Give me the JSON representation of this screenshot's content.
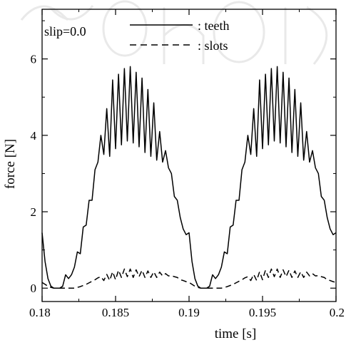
{
  "chart_data": {
    "type": "line",
    "title": "",
    "xlabel": "time [s]",
    "ylabel": "force [N]",
    "xlim": [
      0.18,
      0.2
    ],
    "ylim": [
      -0.35,
      7.3
    ],
    "x_ticks": [
      0.18,
      0.185,
      0.19,
      0.195,
      0.2
    ],
    "x_tick_labels": [
      "0.18",
      "0.185",
      "0.19",
      "0.195",
      "0.2"
    ],
    "y_ticks": [
      0,
      2,
      4,
      6
    ],
    "y_tick_labels": [
      "0",
      "2",
      "4",
      "6"
    ],
    "annotation": "slip=0.0",
    "grid": false,
    "legend_position": "top",
    "series": [
      {
        "name": ": teeth",
        "style": "solid",
        "color": "#000000",
        "period": 0.01,
        "x": [
          0.18,
          0.1802,
          0.1804,
          0.1806,
          0.1808,
          0.181,
          0.1812,
          0.1814,
          0.1816,
          0.1818,
          0.182,
          0.1822,
          0.1824,
          0.1826,
          0.1828,
          0.183,
          0.1832,
          0.1834,
          0.1836,
          0.1838,
          0.184,
          0.1842,
          0.1844,
          0.1846,
          0.1848,
          0.185,
          0.1852,
          0.1854,
          0.1856,
          0.1858,
          0.186,
          0.1862,
          0.1864,
          0.1866,
          0.1868,
          0.187,
          0.1872,
          0.1874,
          0.1876,
          0.1878,
          0.188,
          0.1882,
          0.1884,
          0.1886,
          0.1888,
          0.189,
          0.1892,
          0.1894,
          0.1896,
          0.1898,
          0.19
        ],
        "y": [
          1.45,
          0.7,
          0.25,
          0.05,
          0.0,
          0.0,
          0.0,
          0.05,
          0.35,
          0.25,
          0.35,
          0.55,
          0.95,
          0.9,
          1.6,
          1.65,
          2.3,
          2.3,
          3.1,
          3.3,
          4.0,
          3.5,
          4.7,
          3.45,
          5.45,
          3.65,
          5.6,
          3.75,
          5.75,
          3.85,
          5.8,
          3.8,
          5.65,
          3.7,
          5.5,
          3.55,
          5.2,
          3.45,
          4.85,
          3.35,
          4.1,
          3.3,
          3.6,
          3.15,
          3.0,
          2.4,
          2.3,
          1.85,
          1.55,
          1.4,
          1.45
        ]
      },
      {
        "name": ": slots",
        "style": "dashed",
        "color": "#000000",
        "period": 0.01,
        "x": [
          0.18,
          0.1802,
          0.1804,
          0.1806,
          0.1808,
          0.181,
          0.1812,
          0.1814,
          0.1816,
          0.1818,
          0.182,
          0.1822,
          0.1824,
          0.1826,
          0.1828,
          0.183,
          0.1832,
          0.1834,
          0.1836,
          0.1838,
          0.184,
          0.1842,
          0.1844,
          0.1846,
          0.1848,
          0.185,
          0.1852,
          0.1854,
          0.1856,
          0.1858,
          0.186,
          0.1862,
          0.1864,
          0.1866,
          0.1868,
          0.187,
          0.1872,
          0.1874,
          0.1876,
          0.1878,
          0.188,
          0.1882,
          0.1884,
          0.1886,
          0.1888,
          0.189,
          0.1892,
          0.1894,
          0.1896,
          0.1898,
          0.19
        ],
        "y": [
          0.15,
          0.1,
          0.05,
          0.02,
          0.0,
          0.0,
          0.0,
          0.0,
          0.0,
          0.0,
          0.0,
          0.0,
          0.02,
          0.04,
          0.07,
          0.1,
          0.14,
          0.18,
          0.22,
          0.27,
          0.3,
          0.2,
          0.36,
          0.2,
          0.43,
          0.22,
          0.47,
          0.28,
          0.5,
          0.3,
          0.5,
          0.28,
          0.48,
          0.3,
          0.47,
          0.28,
          0.45,
          0.28,
          0.43,
          0.28,
          0.42,
          0.32,
          0.38,
          0.32,
          0.33,
          0.3,
          0.28,
          0.22,
          0.2,
          0.17,
          0.15
        ]
      }
    ]
  }
}
